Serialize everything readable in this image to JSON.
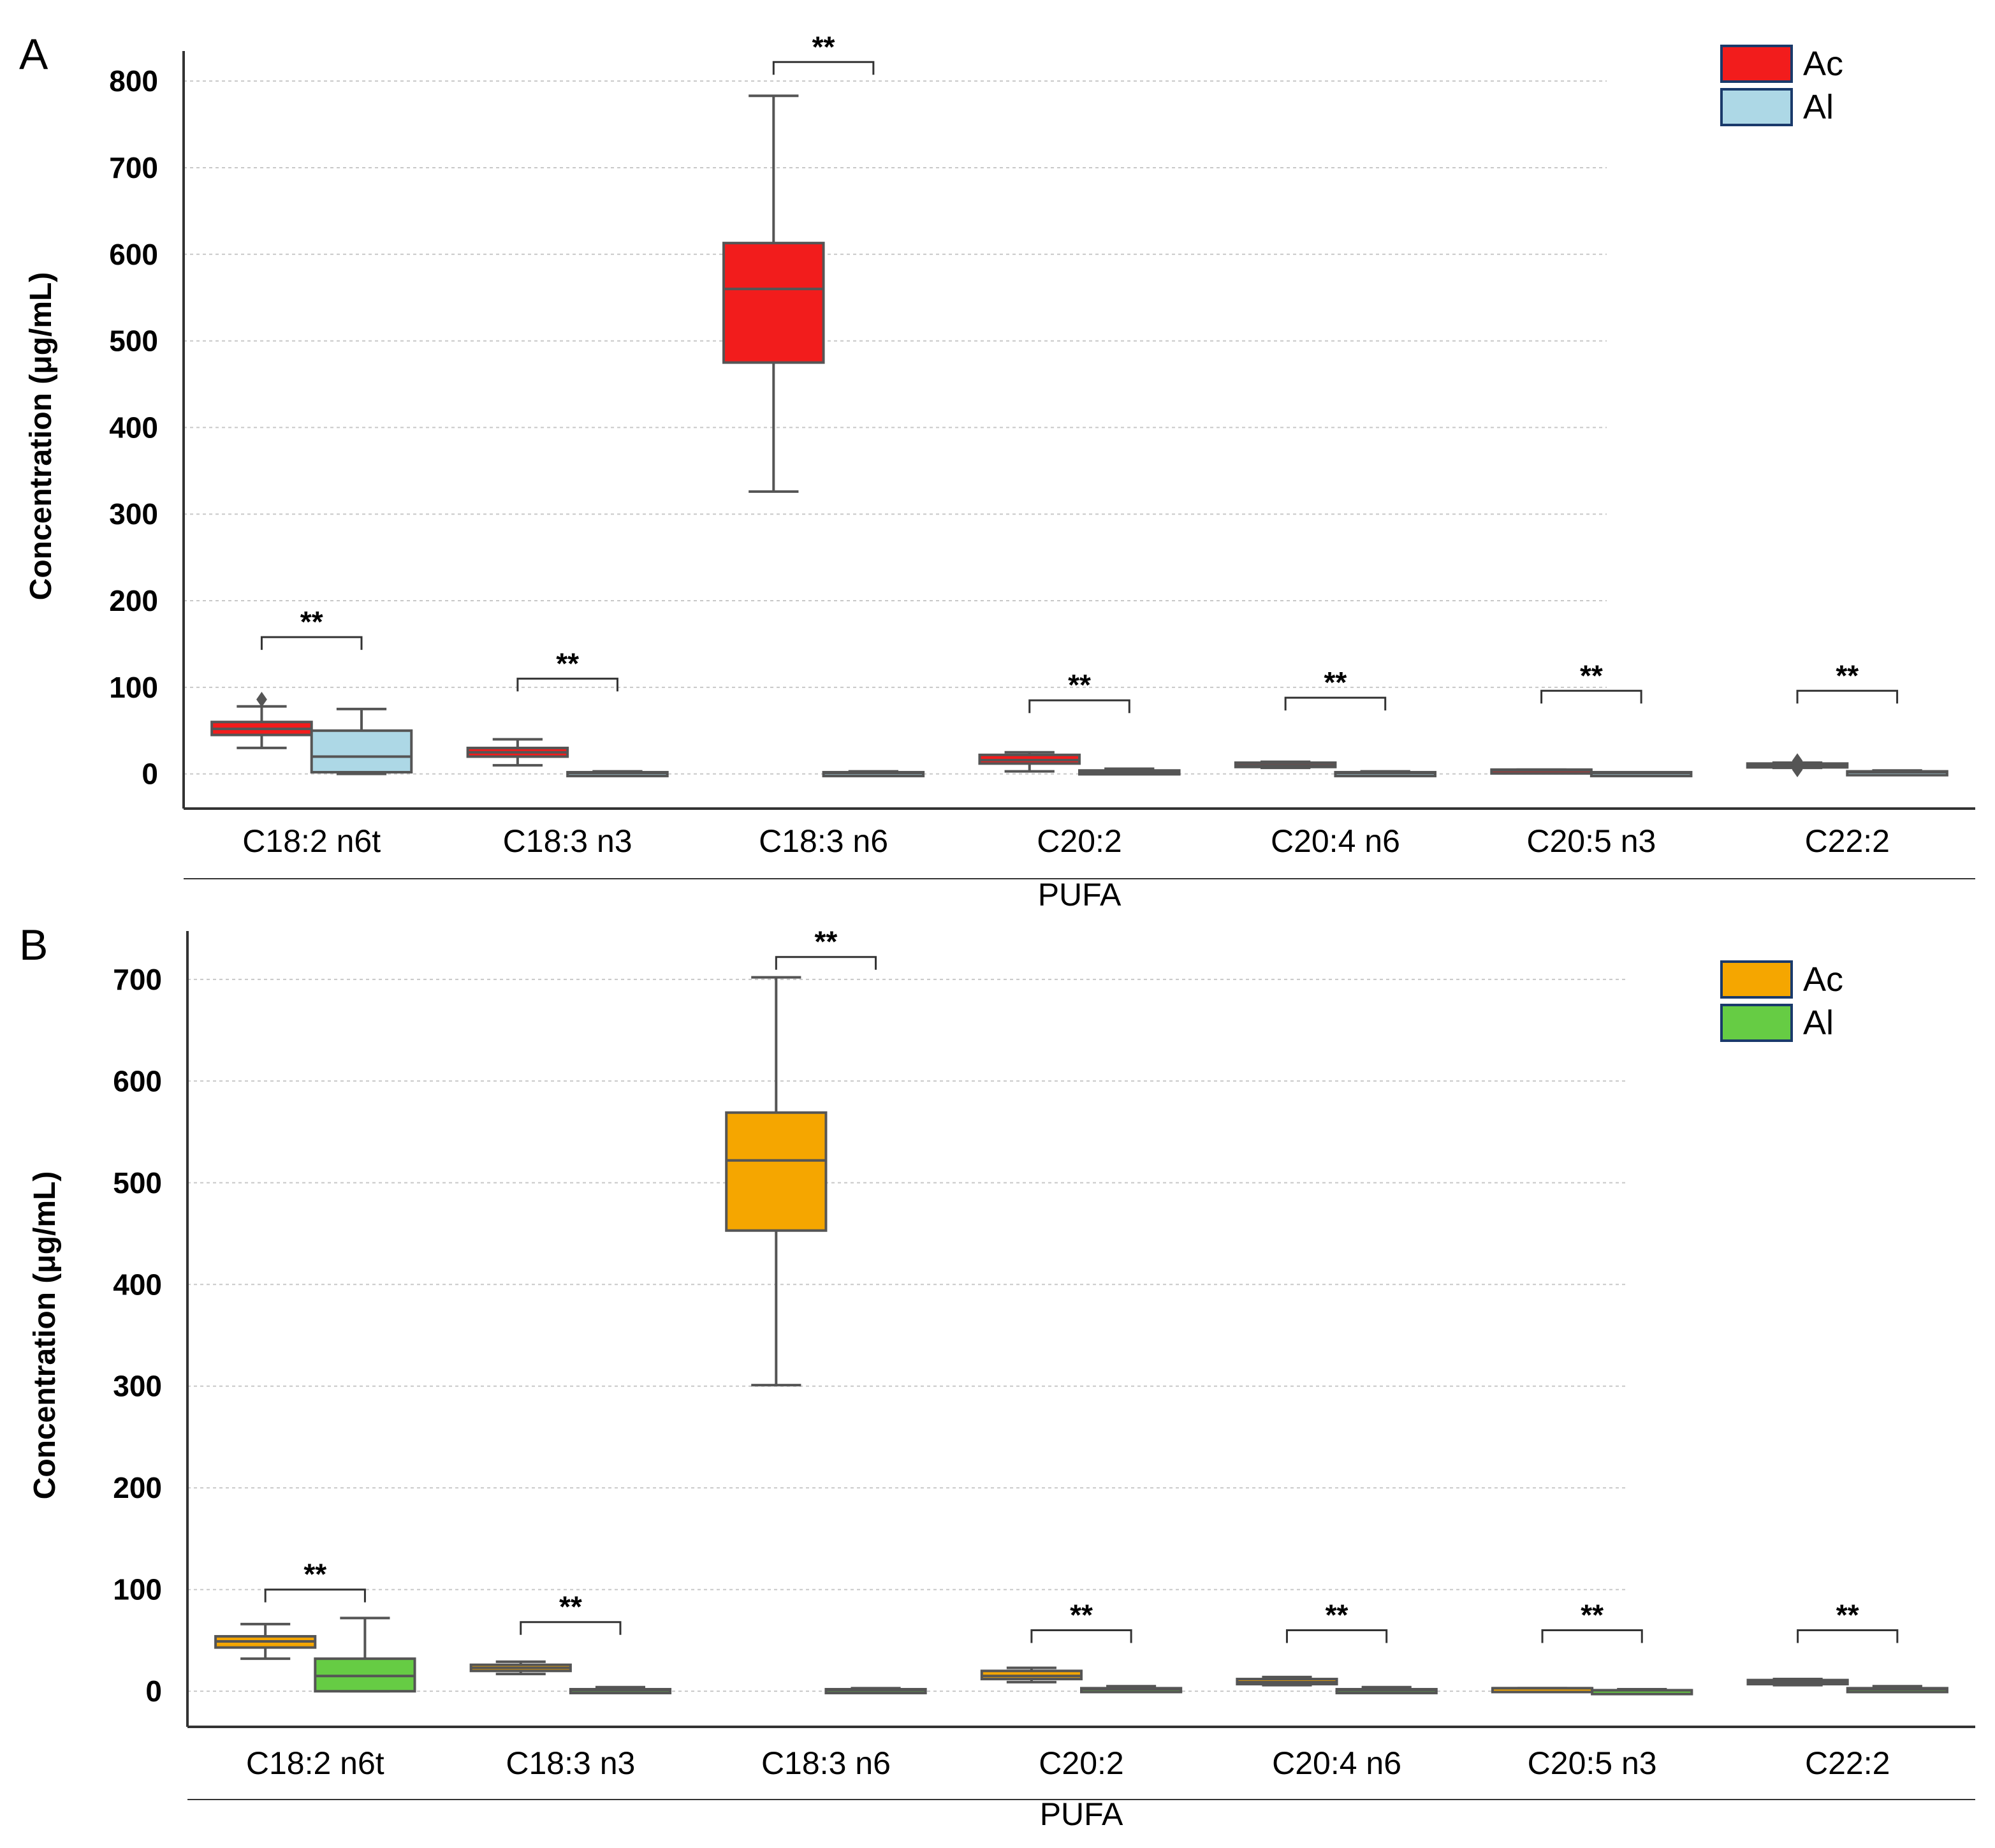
{
  "chart_data": [
    {
      "panel": "A",
      "type": "box",
      "xlabel": "PUFA",
      "ylabel": "Concentration (μg/mL)",
      "ylim": [
        -40,
        820
      ],
      "yticks": [
        0,
        100,
        200,
        300,
        400,
        500,
        600,
        700,
        800
      ],
      "categories": [
        "C18:2 n6t",
        "C18:3 n3",
        "C18:3 n6",
        "C20:2",
        "C20:4 n6",
        "C20:5 n3",
        "C22:2"
      ],
      "legend": [
        {
          "name": "Ac",
          "color": "#f21c1c"
        },
        {
          "name": "Al",
          "color": "#add8e6"
        }
      ],
      "groups": [
        {
          "name": "Ac",
          "color": "#f21c1c",
          "boxes": [
            {
              "min": 30,
              "q1": 45,
              "median": 52,
              "q3": 60,
              "max": 78,
              "outliers": [
                86
              ]
            },
            {
              "min": 10,
              "q1": 20,
              "median": 25,
              "q3": 30,
              "max": 40,
              "outliers": []
            },
            {
              "min": 326,
              "q1": 475,
              "median": 560,
              "q3": 613,
              "max": 783,
              "outliers": []
            },
            {
              "min": 3,
              "q1": 12,
              "median": 16,
              "q3": 22,
              "max": 25,
              "outliers": []
            },
            {
              "min": 7,
              "q1": 8,
              "median": 10,
              "q3": 13,
              "max": 14,
              "outliers": []
            },
            {
              "min": 3,
              "q1": 3,
              "median": 4,
              "q3": 5,
              "max": 5,
              "outliers": []
            },
            {
              "min": 7,
              "q1": 9,
              "median": 10,
              "q3": 12,
              "max": 13,
              "outliers": [
                5,
                15
              ]
            }
          ]
        },
        {
          "name": "Al",
          "color": "#add8e6",
          "boxes": [
            {
              "min": 0,
              "q1": 2,
              "median": 20,
              "q3": 50,
              "max": 75,
              "outliers": []
            },
            {
              "min": 0,
              "q1": 0,
              "median": 1,
              "q3": 2,
              "max": 3,
              "outliers": []
            },
            {
              "min": 0,
              "q1": 0,
              "median": 1,
              "q3": 2,
              "max": 3,
              "outliers": []
            },
            {
              "min": 0,
              "q1": 1,
              "median": 2,
              "q3": 4,
              "max": 6,
              "outliers": []
            },
            {
              "min": 0,
              "q1": 0,
              "median": 1,
              "q3": 2,
              "max": 3,
              "outliers": []
            },
            {
              "min": 0,
              "q1": 0,
              "median": 1,
              "q3": 2,
              "max": 2,
              "outliers": []
            },
            {
              "min": 0,
              "q1": 0,
              "median": 2,
              "q3": 3,
              "max": 4,
              "outliers": []
            }
          ]
        }
      ],
      "significance": [
        {
          "category": "C18:2 n6t",
          "label": "**",
          "y": 158
        },
        {
          "category": "C18:3 n3",
          "label": "**",
          "y": 110
        },
        {
          "category": "C18:3 n6",
          "label": "**",
          "y": 822
        },
        {
          "category": "C20:2",
          "label": "**",
          "y": 85
        },
        {
          "category": "C20:4 n6",
          "label": "**",
          "y": 88
        },
        {
          "category": "C20:5 n3",
          "label": "**",
          "y": 96
        },
        {
          "category": "C22:2",
          "label": "**",
          "y": 96
        }
      ]
    },
    {
      "panel": "B",
      "type": "box",
      "xlabel": "PUFA",
      "ylabel": "Concentration (μg/mL)",
      "ylim": [
        -35,
        735
      ],
      "yticks": [
        0,
        100,
        200,
        300,
        400,
        500,
        600,
        700
      ],
      "categories": [
        "C18:2 n6t",
        "C18:3 n3",
        "C18:3 n6",
        "C20:2",
        "C20:4 n6",
        "C20:5 n3",
        "C22:2"
      ],
      "legend": [
        {
          "name": "Ac",
          "color": "#f5a600"
        },
        {
          "name": "Al",
          "color": "#66cc44"
        }
      ],
      "groups": [
        {
          "name": "Ac",
          "color": "#f5a600",
          "boxes": [
            {
              "min": 32,
              "q1": 43,
              "median": 49,
              "q3": 54,
              "max": 66,
              "outliers": []
            },
            {
              "min": 17,
              "q1": 20,
              "median": 23,
              "q3": 26,
              "max": 29,
              "outliers": []
            },
            {
              "min": 301,
              "q1": 453,
              "median": 522,
              "q3": 569,
              "max": 702,
              "outliers": []
            },
            {
              "min": 9,
              "q1": 12,
              "median": 15,
              "q3": 20,
              "max": 23,
              "outliers": []
            },
            {
              "min": 6,
              "q1": 7,
              "median": 9,
              "q3": 12,
              "max": 14,
              "outliers": []
            },
            {
              "min": 2,
              "q1": 2,
              "median": 3,
              "q3": 3,
              "max": 3,
              "outliers": []
            },
            {
              "min": 6,
              "q1": 7,
              "median": 9,
              "q3": 11,
              "max": 12,
              "outliers": []
            }
          ]
        },
        {
          "name": "Al",
          "color": "#66cc44",
          "boxes": [
            {
              "min": 0,
              "q1": 0,
              "median": 15,
              "q3": 32,
              "max": 72,
              "outliers": []
            },
            {
              "min": 0,
              "q1": 0,
              "median": 1,
              "q3": 2,
              "max": 4,
              "outliers": []
            },
            {
              "min": 0,
              "q1": 0,
              "median": 1,
              "q3": 2,
              "max": 3,
              "outliers": []
            },
            {
              "min": 0,
              "q1": 0,
              "median": 2,
              "q3": 3,
              "max": 5,
              "outliers": []
            },
            {
              "min": 0,
              "q1": 0,
              "median": 1,
              "q3": 2,
              "max": 4,
              "outliers": []
            },
            {
              "min": 0,
              "q1": 0,
              "median": 1,
              "q3": 1,
              "max": 2,
              "outliers": []
            },
            {
              "min": 0,
              "q1": 0,
              "median": 2,
              "q3": 3,
              "max": 5,
              "outliers": []
            }
          ]
        }
      ],
      "significance": [
        {
          "category": "C18:2 n6t",
          "label": "**",
          "y": 100
        },
        {
          "category": "C18:3 n3",
          "label": "**",
          "y": 68
        },
        {
          "category": "C18:3 n6",
          "label": "**",
          "y": 722
        },
        {
          "category": "C20:2",
          "label": "**",
          "y": 60
        },
        {
          "category": "C20:4 n6",
          "label": "**",
          "y": 60
        },
        {
          "category": "C20:5 n3",
          "label": "**",
          "y": 60
        },
        {
          "category": "C22:2",
          "label": "**",
          "y": 60
        }
      ]
    }
  ]
}
